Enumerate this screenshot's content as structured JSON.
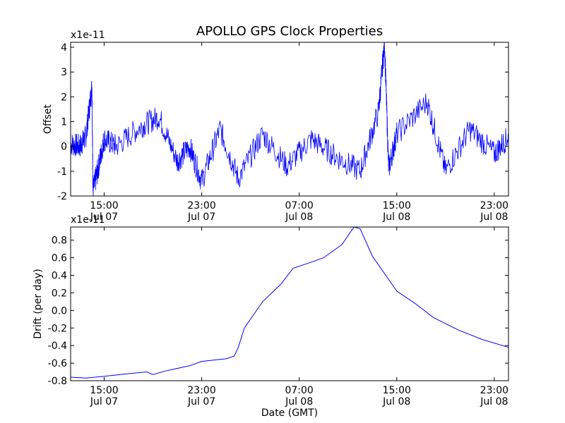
{
  "title": "APOLLO GPS Clock Properties",
  "chart_data": [
    {
      "type": "line",
      "ylabel": "Offset",
      "xlabel": "",
      "offset_label": "x1e-11",
      "ylim": [
        -2,
        4.2
      ],
      "yticks": [
        "-2",
        "-1",
        "0",
        "1",
        "2",
        "3",
        "4"
      ],
      "ytick_values": [
        -2,
        -1,
        0,
        1,
        2,
        3,
        4
      ],
      "xticks": [
        {
          "time": "15:00",
          "date": "Jul 07"
        },
        {
          "time": "23:00",
          "date": "Jul 07"
        },
        {
          "time": "07:00",
          "date": "Jul 08"
        },
        {
          "time": "15:00",
          "date": "Jul 08"
        },
        {
          "time": "23:00",
          "date": "Jul 08"
        }
      ],
      "xlim_hours": [
        "Jul 07 12:15",
        "Jul 09 00:10"
      ],
      "series": [
        {
          "color": "#0000ff",
          "points": [
            [
              "Jul 07 12:15",
              0.1
            ],
            [
              "Jul 07 13:00",
              0.0
            ],
            [
              "Jul 07 13:30",
              0.4
            ],
            [
              "Jul 07 14:00",
              2.4
            ],
            [
              "Jul 07 14:05",
              -1.8
            ],
            [
              "Jul 07 14:30",
              -0.9
            ],
            [
              "Jul 07 15:00",
              0.3
            ],
            [
              "Jul 07 16:00",
              0.0
            ],
            [
              "Jul 07 18:00",
              0.8
            ],
            [
              "Jul 07 19:30",
              1.2
            ],
            [
              "Jul 07 21:00",
              -0.6
            ],
            [
              "Jul 07 22:00",
              0.0
            ],
            [
              "Jul 07 23:00",
              -1.4
            ],
            [
              "Jul 08 00:30",
              0.7
            ],
            [
              "Jul 08 02:00",
              -1.3
            ],
            [
              "Jul 08 04:00",
              0.5
            ],
            [
              "Jul 08 06:00",
              -0.8
            ],
            [
              "Jul 08 08:00",
              0.3
            ],
            [
              "Jul 08 10:00",
              -0.4
            ],
            [
              "Jul 08 12:00",
              -1.0
            ],
            [
              "Jul 08 13:30",
              1.4
            ],
            [
              "Jul 08 14:00",
              4.2
            ],
            [
              "Jul 08 14:20",
              -0.9
            ],
            [
              "Jul 08 15:00",
              0.5
            ],
            [
              "Jul 08 17:30",
              1.8
            ],
            [
              "Jul 08 19:00",
              -1.0
            ],
            [
              "Jul 08 21:00",
              0.7
            ],
            [
              "Jul 08 23:00",
              -0.3
            ],
            [
              "Jul 09 00:10",
              0.4
            ]
          ]
        }
      ]
    },
    {
      "type": "line",
      "ylabel": "Drift (per day)",
      "xlabel": "Date (GMT)",
      "offset_label": "x1e-11",
      "ylim": [
        -0.8,
        0.95
      ],
      "yticks": [
        "-0.8",
        "-0.6",
        "-0.4",
        "-0.2",
        "0.0",
        "0.2",
        "0.4",
        "0.6",
        "0.8"
      ],
      "ytick_values": [
        -0.8,
        -0.6,
        -0.4,
        -0.2,
        0.0,
        0.2,
        0.4,
        0.6,
        0.8
      ],
      "xticks": [
        {
          "time": "15:00",
          "date": "Jul 07"
        },
        {
          "time": "23:00",
          "date": "Jul 07"
        },
        {
          "time": "07:00",
          "date": "Jul 08"
        },
        {
          "time": "15:00",
          "date": "Jul 08"
        },
        {
          "time": "23:00",
          "date": "Jul 08"
        }
      ],
      "xlim_hours": [
        "Jul 07 12:15",
        "Jul 09 00:10"
      ],
      "series": [
        {
          "color": "#0000ff",
          "points": [
            [
              "Jul 07 12:15",
              -0.76
            ],
            [
              "Jul 07 13:30",
              -0.77
            ],
            [
              "Jul 07 15:00",
              -0.75
            ],
            [
              "Jul 07 17:00",
              -0.72
            ],
            [
              "Jul 07 18:30",
              -0.7
            ],
            [
              "Jul 07 19:00",
              -0.73
            ],
            [
              "Jul 07 20:00",
              -0.69
            ],
            [
              "Jul 07 22:00",
              -0.63
            ],
            [
              "Jul 07 23:00",
              -0.58
            ],
            [
              "Jul 08 01:00",
              -0.55
            ],
            [
              "Jul 08 01:40",
              -0.52
            ],
            [
              "Jul 08 02:00",
              -0.42
            ],
            [
              "Jul 08 02:30",
              -0.2
            ],
            [
              "Jul 08 04:00",
              0.1
            ],
            [
              "Jul 08 05:30",
              0.3
            ],
            [
              "Jul 08 06:30",
              0.48
            ],
            [
              "Jul 08 08:00",
              0.55
            ],
            [
              "Jul 08 09:00",
              0.6
            ],
            [
              "Jul 08 10:30",
              0.75
            ],
            [
              "Jul 08 11:30",
              0.95
            ],
            [
              "Jul 08 12:00",
              0.93
            ],
            [
              "Jul 08 13:00",
              0.62
            ],
            [
              "Jul 08 14:00",
              0.42
            ],
            [
              "Jul 08 15:00",
              0.22
            ],
            [
              "Jul 08 16:30",
              0.08
            ],
            [
              "Jul 08 18:00",
              -0.08
            ],
            [
              "Jul 08 20:00",
              -0.22
            ],
            [
              "Jul 08 22:00",
              -0.33
            ],
            [
              "Jul 09 00:10",
              -0.42
            ]
          ]
        }
      ]
    }
  ]
}
